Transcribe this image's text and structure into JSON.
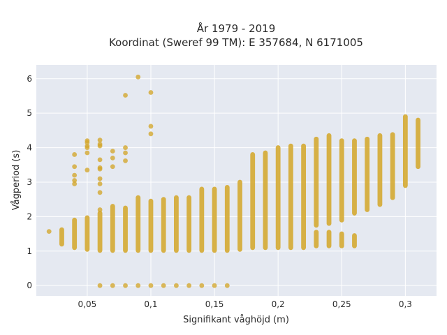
{
  "chart_data": {
    "type": "scatter",
    "title_line1": "År 1979 - 2019",
    "title_line2": "Koordinat (Sweref 99 TM): E 357684, N 6171005",
    "xlabel": "Signifikant våghöjd (m)",
    "ylabel": "Vågperiod (s)",
    "xlim": [
      0.01,
      0.3245
    ],
    "ylim": [
      -0.3,
      6.4
    ],
    "x_ticks": [
      0.05,
      0.1,
      0.15,
      0.2,
      0.25,
      0.3
    ],
    "x_tick_labels": [
      "0,05",
      "0,1",
      "0,15",
      "0,2",
      "0,25",
      "0,3"
    ],
    "y_ticks": [
      0,
      1,
      2,
      3,
      4,
      5,
      6
    ],
    "y_tick_labels": [
      "0",
      "1",
      "2",
      "3",
      "4",
      "5",
      "6"
    ],
    "grid": true,
    "colors": {
      "marker": "#d4a72c",
      "plot_bg": "#e5e9f1",
      "grid": "#ffffff",
      "text": "#2a2a2a"
    },
    "columns": [
      {
        "x": 0.02,
        "ymin": 1.57,
        "ymax": 1.57
      },
      {
        "x": 0.03,
        "ymin": 1.2,
        "ymax": 1.62
      },
      {
        "x": 0.04,
        "ymin": 1.1,
        "ymax": 1.9
      },
      {
        "x": 0.05,
        "ymin": 1.05,
        "ymax": 1.97
      },
      {
        "x": 0.06,
        "ymin": 1.02,
        "ymax": 2.1
      },
      {
        "x": 0.07,
        "ymin": 1.02,
        "ymax": 2.3
      },
      {
        "x": 0.08,
        "ymin": 1.02,
        "ymax": 2.25
      },
      {
        "x": 0.09,
        "ymin": 1.02,
        "ymax": 2.55
      },
      {
        "x": 0.1,
        "ymin": 1.02,
        "ymax": 2.45
      },
      {
        "x": 0.11,
        "ymin": 1.02,
        "ymax": 2.5
      },
      {
        "x": 0.12,
        "ymin": 1.02,
        "ymax": 2.55
      },
      {
        "x": 0.13,
        "ymin": 1.02,
        "ymax": 2.55
      },
      {
        "x": 0.14,
        "ymin": 1.02,
        "ymax": 2.8
      },
      {
        "x": 0.15,
        "ymin": 1.02,
        "ymax": 2.8
      },
      {
        "x": 0.16,
        "ymin": 1.02,
        "ymax": 2.85
      },
      {
        "x": 0.17,
        "ymin": 1.05,
        "ymax": 3.0
      },
      {
        "x": 0.18,
        "ymin": 1.1,
        "ymax": 3.8
      },
      {
        "x": 0.19,
        "ymin": 1.1,
        "ymax": 3.85
      },
      {
        "x": 0.2,
        "ymin": 1.1,
        "ymax": 4.0
      },
      {
        "x": 0.21,
        "ymin": 1.1,
        "ymax": 4.05
      },
      {
        "x": 0.22,
        "ymin": 1.1,
        "ymax": 4.05
      }
    ],
    "split_columns": [
      {
        "x": 0.23,
        "low": [
          1.15,
          1.55
        ],
        "high": [
          1.75,
          4.25
        ]
      },
      {
        "x": 0.24,
        "low": [
          1.15,
          1.55
        ],
        "high": [
          1.8,
          4.35
        ]
      },
      {
        "x": 0.25,
        "low": [
          1.15,
          1.5
        ],
        "high": [
          1.9,
          4.2
        ]
      },
      {
        "x": 0.26,
        "low": [
          1.15,
          1.45
        ],
        "high": [
          2.1,
          4.2
        ]
      }
    ],
    "upper_columns": [
      {
        "x": 0.27,
        "ymin": 2.2,
        "ymax": 4.25
      },
      {
        "x": 0.28,
        "ymin": 2.35,
        "ymax": 4.35
      },
      {
        "x": 0.29,
        "ymin": 2.55,
        "ymax": 4.38
      },
      {
        "x": 0.3,
        "ymin": 2.9,
        "ymax": 4.9
      },
      {
        "x": 0.31,
        "ymin": 3.45,
        "ymax": 4.8
      }
    ],
    "zero_points": [
      {
        "x": 0.06,
        "y": 0
      },
      {
        "x": 0.07,
        "y": 0
      },
      {
        "x": 0.08,
        "y": 0
      },
      {
        "x": 0.09,
        "y": 0
      },
      {
        "x": 0.1,
        "y": 0
      },
      {
        "x": 0.11,
        "y": 0
      },
      {
        "x": 0.12,
        "y": 0
      },
      {
        "x": 0.13,
        "y": 0
      },
      {
        "x": 0.14,
        "y": 0
      },
      {
        "x": 0.15,
        "y": 0
      },
      {
        "x": 0.16,
        "y": 0
      }
    ],
    "outliers": [
      {
        "x": 0.04,
        "y": 3.8
      },
      {
        "x": 0.04,
        "y": 3.45
      },
      {
        "x": 0.04,
        "y": 3.2
      },
      {
        "x": 0.04,
        "y": 3.05
      },
      {
        "x": 0.04,
        "y": 2.95
      },
      {
        "x": 0.05,
        "y": 4.2
      },
      {
        "x": 0.05,
        "y": 4.15
      },
      {
        "x": 0.05,
        "y": 4.05
      },
      {
        "x": 0.05,
        "y": 4.0
      },
      {
        "x": 0.05,
        "y": 3.85
      },
      {
        "x": 0.05,
        "y": 3.35
      },
      {
        "x": 0.06,
        "y": 4.22
      },
      {
        "x": 0.06,
        "y": 4.1
      },
      {
        "x": 0.06,
        "y": 4.05
      },
      {
        "x": 0.06,
        "y": 3.65
      },
      {
        "x": 0.06,
        "y": 3.42
      },
      {
        "x": 0.06,
        "y": 3.38
      },
      {
        "x": 0.06,
        "y": 3.1
      },
      {
        "x": 0.06,
        "y": 2.95
      },
      {
        "x": 0.06,
        "y": 2.7
      },
      {
        "x": 0.06,
        "y": 2.2
      },
      {
        "x": 0.07,
        "y": 3.9
      },
      {
        "x": 0.07,
        "y": 3.7
      },
      {
        "x": 0.07,
        "y": 3.45
      },
      {
        "x": 0.08,
        "y": 5.52
      },
      {
        "x": 0.08,
        "y": 4.0
      },
      {
        "x": 0.08,
        "y": 3.85
      },
      {
        "x": 0.08,
        "y": 3.62
      },
      {
        "x": 0.09,
        "y": 6.05
      },
      {
        "x": 0.1,
        "y": 5.6
      },
      {
        "x": 0.1,
        "y": 4.62
      },
      {
        "x": 0.1,
        "y": 4.4
      }
    ]
  }
}
